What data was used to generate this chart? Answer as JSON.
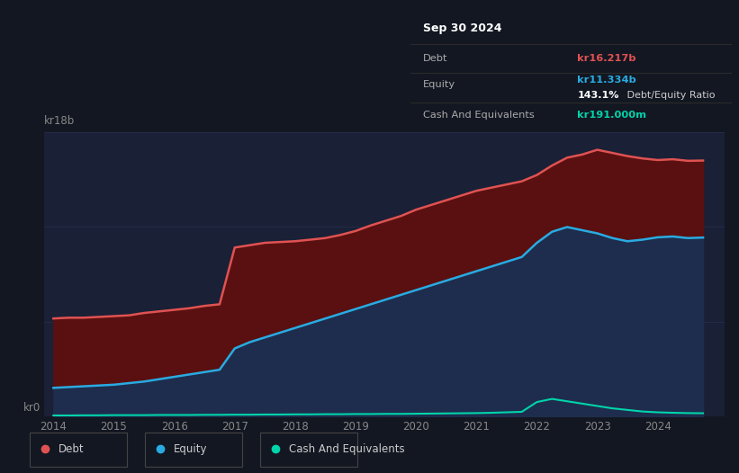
{
  "bg_color": "#131722",
  "plot_bg_color": "#1a2035",
  "title_box": {
    "date": "Sep 30 2024",
    "debt_label": "Debt",
    "debt_value": "kr16.217b",
    "debt_color": "#e05252",
    "equity_label": "Equity",
    "equity_value": "kr11.334b",
    "equity_color": "#29abe2",
    "ratio_text": "143.1% Debt/Equity Ratio",
    "ratio_bold": "143.1%",
    "cash_label": "Cash And Equivalents",
    "cash_value": "kr191.000m",
    "cash_color": "#00d4aa"
  },
  "ylabel_top": "kr18b",
  "ylabel_bottom": "kr0",
  "x_labels": [
    "2014",
    "2015",
    "2016",
    "2017",
    "2018",
    "2019",
    "2020",
    "2021",
    "2022",
    "2023",
    "2024"
  ],
  "debt_color": "#e05252",
  "equity_color": "#29abe2",
  "cash_color": "#00d4aa",
  "debt_fill_color": "#5a1010",
  "equity_fill_color": "#1e2d4d",
  "legend": [
    {
      "label": "Debt",
      "color": "#e05252"
    },
    {
      "label": "Equity",
      "color": "#29abe2"
    },
    {
      "label": "Cash And Equivalents",
      "color": "#00d4aa"
    }
  ],
  "years": [
    2014.0,
    2014.25,
    2014.5,
    2014.75,
    2015.0,
    2015.25,
    2015.5,
    2015.75,
    2016.0,
    2016.25,
    2016.5,
    2016.75,
    2017.0,
    2017.25,
    2017.5,
    2017.75,
    2018.0,
    2018.25,
    2018.5,
    2018.75,
    2019.0,
    2019.25,
    2019.5,
    2019.75,
    2020.0,
    2020.25,
    2020.5,
    2020.75,
    2021.0,
    2021.25,
    2021.5,
    2021.75,
    2022.0,
    2022.25,
    2022.5,
    2022.75,
    2023.0,
    2023.25,
    2023.5,
    2023.75,
    2024.0,
    2024.25,
    2024.5,
    2024.75
  ],
  "debt": [
    6.2,
    6.25,
    6.25,
    6.3,
    6.35,
    6.4,
    6.55,
    6.65,
    6.75,
    6.85,
    7.0,
    7.1,
    10.7,
    10.85,
    11.0,
    11.05,
    11.1,
    11.2,
    11.3,
    11.5,
    11.75,
    12.1,
    12.4,
    12.7,
    13.1,
    13.4,
    13.7,
    14.0,
    14.3,
    14.5,
    14.7,
    14.9,
    15.3,
    15.9,
    16.4,
    16.6,
    16.9,
    16.7,
    16.5,
    16.35,
    16.25,
    16.3,
    16.2,
    16.217
  ],
  "equity": [
    1.8,
    1.85,
    1.9,
    1.95,
    2.0,
    2.1,
    2.2,
    2.35,
    2.5,
    2.65,
    2.8,
    2.95,
    4.3,
    4.7,
    5.0,
    5.3,
    5.6,
    5.9,
    6.2,
    6.5,
    6.8,
    7.1,
    7.4,
    7.7,
    8.0,
    8.3,
    8.6,
    8.9,
    9.2,
    9.5,
    9.8,
    10.1,
    11.0,
    11.7,
    12.0,
    11.8,
    11.6,
    11.3,
    11.1,
    11.2,
    11.35,
    11.4,
    11.3,
    11.334
  ],
  "cash": [
    0.05,
    0.05,
    0.06,
    0.06,
    0.07,
    0.07,
    0.07,
    0.08,
    0.08,
    0.08,
    0.09,
    0.09,
    0.1,
    0.1,
    0.11,
    0.11,
    0.12,
    0.12,
    0.13,
    0.13,
    0.14,
    0.14,
    0.15,
    0.15,
    0.16,
    0.17,
    0.18,
    0.19,
    0.2,
    0.22,
    0.25,
    0.28,
    0.9,
    1.1,
    0.95,
    0.8,
    0.65,
    0.5,
    0.4,
    0.3,
    0.25,
    0.22,
    0.2,
    0.191
  ],
  "ylim": [
    0,
    18
  ],
  "xlim": [
    2013.85,
    2025.1
  ],
  "grid_color": "#2a3050",
  "tick_color": "#888888"
}
